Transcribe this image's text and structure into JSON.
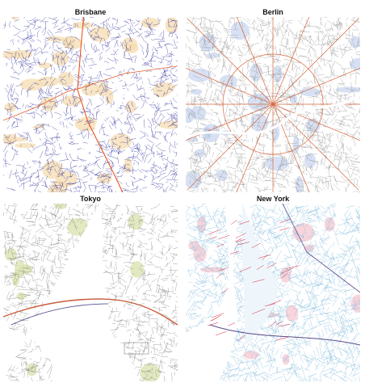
{
  "panels": [
    {
      "id": "brisbane",
      "title": "Brisbane",
      "base_color": "#2b2a9a",
      "accent_color": "#e8551f",
      "fill_color": "#f6dcb0",
      "water_color": "#ffffff"
    },
    {
      "id": "berlin",
      "title": "Berlin",
      "base_color": "#8d8d8d",
      "accent_color": "#d9673b",
      "fill_color": "#b7c9ea",
      "water_color": "#ffffff"
    },
    {
      "id": "tokyo",
      "title": "Tokyo",
      "base_color": "#6f6f6f",
      "accent_color": "#c95d3a",
      "fill_color": "#d6dfa6",
      "water_color": "#ffffff"
    },
    {
      "id": "newyork",
      "title": "New York",
      "base_color": "#8cc0df",
      "accent_color": "#d7263d",
      "fill_color": "#f4b9c4",
      "water_color": "#ffffff"
    }
  ]
}
